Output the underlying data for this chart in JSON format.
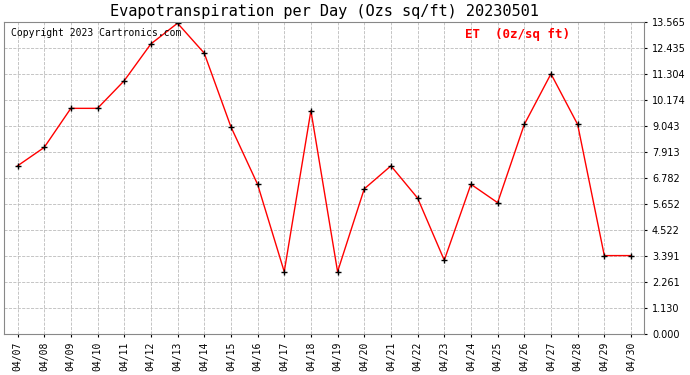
{
  "title": "Evapotranspiration per Day (Ozs sq/ft) 20230501",
  "copyright": "Copyright 2023 Cartronics.com",
  "legend_label": "ET  (0z/sq ft)",
  "dates": [
    "04/07",
    "04/08",
    "04/09",
    "04/10",
    "04/11",
    "04/12",
    "04/13",
    "04/14",
    "04/15",
    "04/16",
    "04/17",
    "04/18",
    "04/19",
    "04/20",
    "04/21",
    "04/22",
    "04/23",
    "04/24",
    "04/25",
    "04/26",
    "04/27",
    "04/28",
    "04/29",
    "04/30"
  ],
  "values": [
    7.3,
    8.1,
    9.8,
    9.8,
    11.0,
    12.6,
    13.5,
    12.2,
    9.0,
    6.5,
    2.7,
    9.7,
    2.7,
    6.3,
    7.3,
    5.9,
    3.2,
    6.5,
    5.7,
    9.1,
    11.3,
    9.1,
    3.4,
    3.4
  ],
  "y_ticks": [
    0.0,
    1.13,
    2.261,
    3.391,
    4.522,
    5.652,
    6.782,
    7.913,
    9.043,
    10.174,
    11.304,
    12.435,
    13.565
  ],
  "ylim": [
    0.0,
    13.565
  ],
  "line_color": "red",
  "marker": "+",
  "grid_color": "#bbbbbb",
  "background_color": "#ffffff",
  "title_fontsize": 11,
  "copyright_fontsize": 7,
  "legend_fontsize": 9,
  "tick_fontsize": 7
}
